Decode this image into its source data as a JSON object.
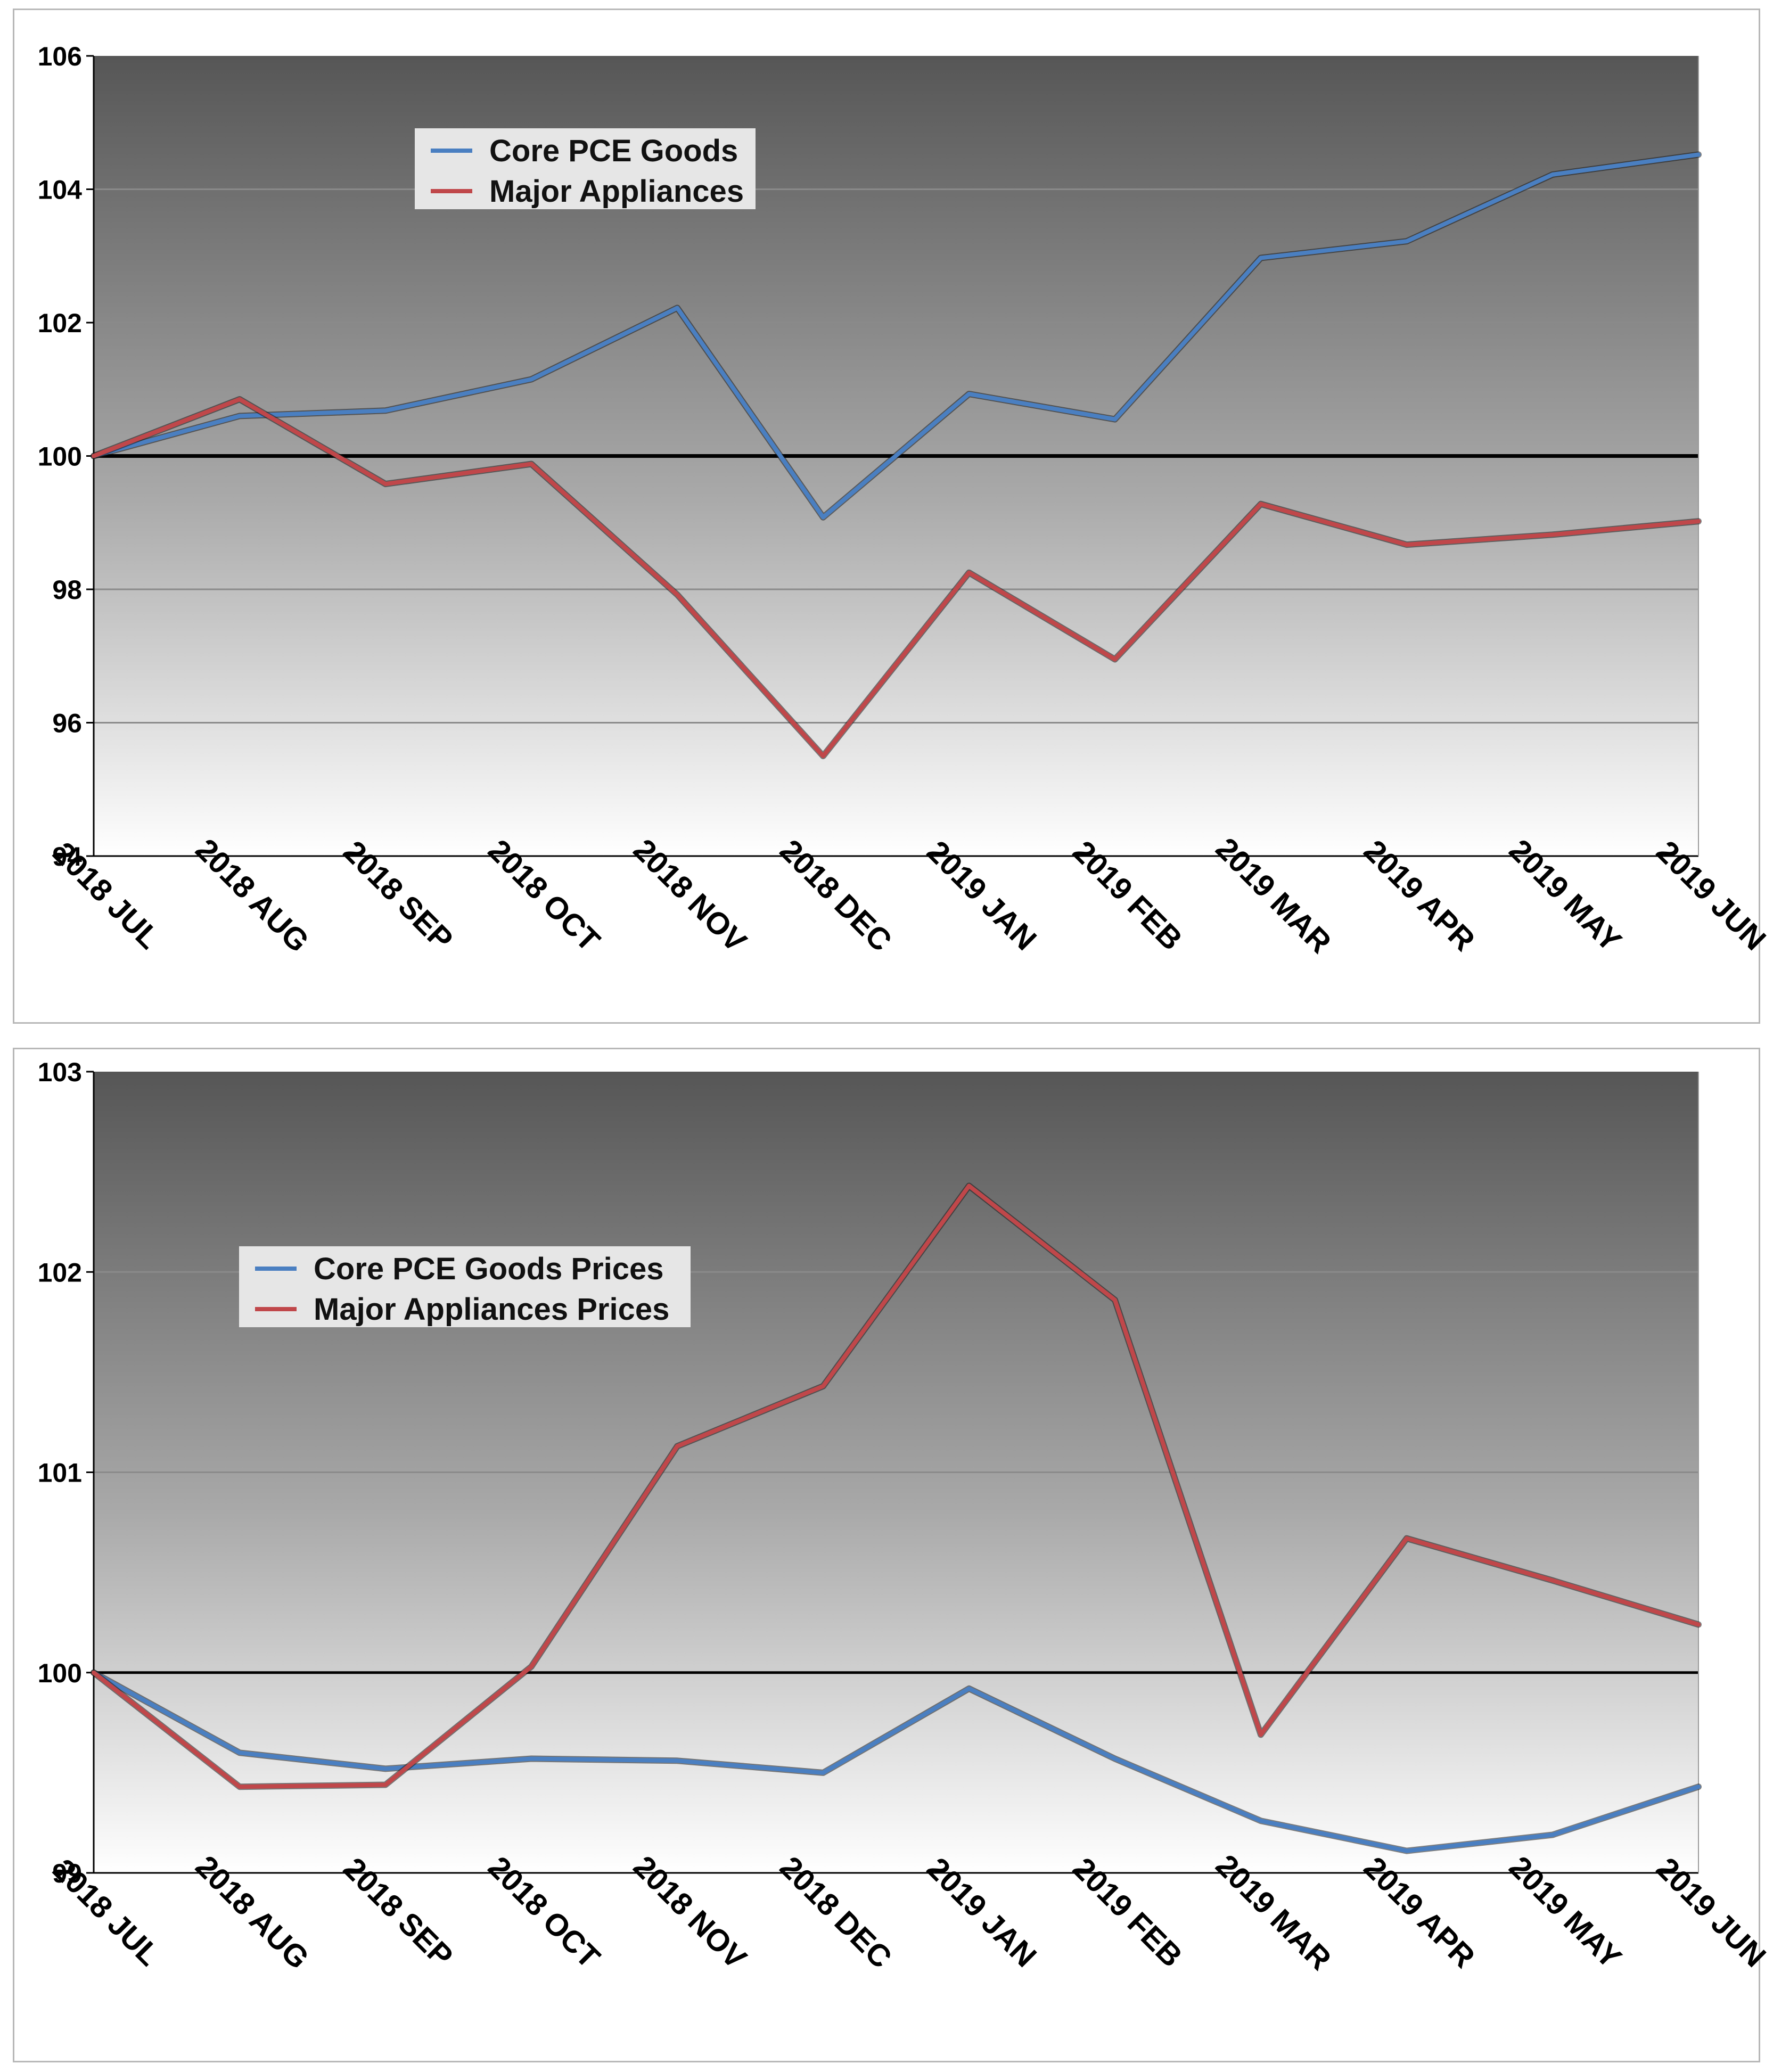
{
  "chart_data": [
    {
      "type": "line",
      "title": "",
      "xlabel": "",
      "ylabel": "",
      "categories": [
        "2018 JUL",
        "2018 AUG",
        "2018 SEP",
        "2018 OCT",
        "2018 NOV",
        "2018 DEC",
        "2019 JAN",
        "2019 FEB",
        "2019 MAR",
        "2019 APR",
        "2019 MAY",
        "2019 JUN"
      ],
      "ylim": [
        94,
        106
      ],
      "yticks": [
        94,
        96,
        98,
        100,
        102,
        104,
        106
      ],
      "ytick_labels": [
        "94",
        "96",
        "98",
        "100",
        "102",
        "104",
        "106"
      ],
      "reference_line": 100,
      "grid": true,
      "legend_position": "top-left",
      "series": [
        {
          "name": "Core PCE Goods",
          "color": "#4a7fc1",
          "values": [
            100.0,
            100.6,
            100.68,
            101.15,
            102.22,
            99.08,
            100.93,
            100.55,
            102.97,
            103.22,
            104.22,
            104.52
          ]
        },
        {
          "name": "Major Appliances",
          "color": "#c0474a",
          "values": [
            100.0,
            100.85,
            99.58,
            99.88,
            97.92,
            95.5,
            98.25,
            96.95,
            99.28,
            98.67,
            98.82,
            99.02
          ]
        }
      ]
    },
    {
      "type": "line",
      "title": "",
      "xlabel": "",
      "ylabel": "",
      "categories": [
        "2018 JUL",
        "2018 AUG",
        "2018 SEP",
        "2018 OCT",
        "2018 NOV",
        "2018 DEC",
        "2019 JAN",
        "2019 FEB",
        "2019 MAR",
        "2019 APR",
        "2019 MAY",
        "2019 JUN"
      ],
      "ylim": [
        99,
        103
      ],
      "yticks": [
        99,
        100,
        101,
        102,
        103
      ],
      "ytick_labels": [
        "99",
        "100",
        "101",
        "102",
        "103"
      ],
      "reference_line": 100,
      "grid": true,
      "legend_position": "top-left",
      "series": [
        {
          "name": "Core PCE Goods Prices",
          "color": "#4a7fc1",
          "values": [
            100.0,
            99.6,
            99.52,
            99.57,
            99.56,
            99.5,
            99.92,
            99.57,
            99.26,
            99.11,
            99.19,
            99.43
          ]
        },
        {
          "name": "Major Appliances Prices",
          "color": "#c0474a",
          "values": [
            100.0,
            99.43,
            99.44,
            100.03,
            101.13,
            101.43,
            102.43,
            101.86,
            99.69,
            100.67,
            100.46,
            100.24
          ]
        }
      ]
    }
  ]
}
